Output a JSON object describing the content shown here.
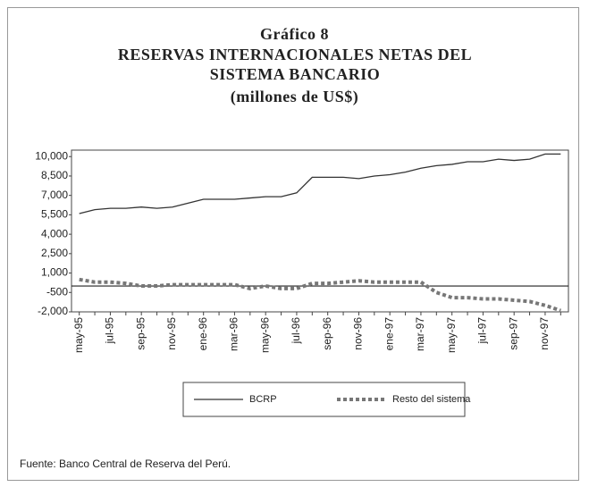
{
  "chart_data": {
    "type": "line",
    "figure_label": "Gráfico 8",
    "title": "RESERVAS INTERNACIONALES NETAS DEL SISTEMA BANCARIO",
    "subtitle": "(millones de US$)",
    "source": "Fuente: Banco Central de Reserva del Perú.",
    "categories": [
      "may-95",
      null,
      "jul-95",
      null,
      "sep-95",
      null,
      "nov-95",
      null,
      "ene-96",
      null,
      "mar-96",
      null,
      "may-96",
      null,
      "jul-96",
      null,
      "sep-96",
      null,
      "nov-96",
      null,
      "ene-97",
      null,
      "mar-97",
      null,
      "may-97",
      null,
      "jul-97",
      null,
      "sep-97",
      null,
      "nov-97",
      null
    ],
    "series": [
      {
        "name": "BCRP",
        "color": "#333333",
        "style": "solid",
        "values": [
          5600,
          5900,
          6000,
          6000,
          6100,
          6000,
          6100,
          6400,
          6700,
          6700,
          6700,
          6800,
          6900,
          6900,
          7200,
          8400,
          8400,
          8400,
          8300,
          8500,
          8600,
          8800,
          9100,
          9300,
          9400,
          9600,
          9600,
          9800,
          9700,
          9800,
          10200,
          10200
        ]
      },
      {
        "name": "Resto del sistema",
        "color": "#777777",
        "style": "dashed",
        "values": [
          500,
          300,
          300,
          200,
          0,
          0,
          100,
          100,
          100,
          100,
          100,
          -200,
          0,
          -200,
          -200,
          200,
          200,
          300,
          400,
          300,
          300,
          300,
          300,
          -500,
          -900,
          -900,
          -1000,
          -1000,
          -1100,
          -1200,
          -1500,
          -1900
        ]
      }
    ],
    "ylim": [
      -2000,
      10500
    ],
    "yticks": [
      {
        "value": -2000,
        "label": "-2,000"
      },
      -500,
      {
        "value": 1000,
        "label": "1,000"
      },
      {
        "value": 2500,
        "label": "2,500"
      },
      {
        "value": 4000,
        "label": "4,000"
      },
      {
        "value": 5500,
        "label": "5,500"
      },
      {
        "value": 7000,
        "label": "7,000"
      },
      {
        "value": 8500,
        "label": "8,500"
      },
      {
        "value": 10000,
        "label": "10,000"
      }
    ],
    "legend": "bottom"
  }
}
